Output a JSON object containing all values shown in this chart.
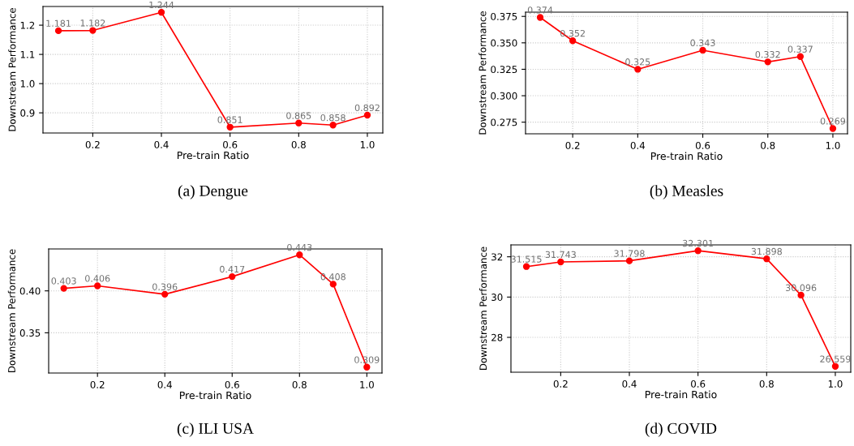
{
  "chart_data": [
    {
      "type": "line",
      "title": "(a) Dengue",
      "xlabel": "Pre-train Ratio",
      "ylabel": "Downstream Performance",
      "x": [
        0.1,
        0.2,
        0.4,
        0.6,
        0.8,
        0.9,
        1.0
      ],
      "series": [
        {
          "color": "#ff0000",
          "values": [
            1.181,
            1.182,
            1.244,
            0.851,
            0.865,
            0.858,
            0.892
          ]
        }
      ],
      "xlim": [
        0.055,
        1.045
      ],
      "xticks": [
        {
          "value": 0.2,
          "label": "0.2"
        },
        {
          "value": 0.4,
          "label": "0.4"
        },
        {
          "value": 0.6,
          "label": "0.6"
        },
        {
          "value": 0.8,
          "label": "0.8"
        },
        {
          "value": 1.0,
          "label": "1.0"
        }
      ],
      "ylim": [
        0.831,
        1.264
      ],
      "yticks": [
        {
          "value": 0.9,
          "label": "0.9"
        },
        {
          "value": 1.0,
          "label": "1.0"
        },
        {
          "value": 1.1,
          "label": "1.1"
        },
        {
          "value": 1.2,
          "label": "1.2"
        }
      ],
      "grid": true,
      "marker": "circle",
      "line_style": "solid",
      "data_labels": true
    },
    {
      "type": "line",
      "title": "(b) Measles",
      "xlabel": "Pre-train Ratio",
      "ylabel": "Downstream Performance",
      "x": [
        0.1,
        0.2,
        0.4,
        0.6,
        0.8,
        0.9,
        1.0
      ],
      "series": [
        {
          "color": "#ff0000",
          "values": [
            0.374,
            0.352,
            0.325,
            0.343,
            0.332,
            0.337,
            0.269
          ]
        }
      ],
      "xlim": [
        0.055,
        1.045
      ],
      "xticks": [
        {
          "value": 0.2,
          "label": "0.2"
        },
        {
          "value": 0.4,
          "label": "0.4"
        },
        {
          "value": 0.6,
          "label": "0.6"
        },
        {
          "value": 0.8,
          "label": "0.8"
        },
        {
          "value": 1.0,
          "label": "1.0"
        }
      ],
      "ylim": [
        0.264,
        0.379
      ],
      "yticks": [
        {
          "value": 0.275,
          "label": "0.275"
        },
        {
          "value": 0.3,
          "label": "0.300"
        },
        {
          "value": 0.325,
          "label": "0.325"
        },
        {
          "value": 0.35,
          "label": "0.350"
        },
        {
          "value": 0.375,
          "label": "0.375"
        }
      ],
      "grid": true,
      "marker": "circle",
      "line_style": "solid",
      "data_labels": true
    },
    {
      "type": "line",
      "title": "(c) ILI USA",
      "xlabel": "Pre-train Ratio",
      "ylabel": "Downstream Performance",
      "x": [
        0.1,
        0.2,
        0.4,
        0.6,
        0.8,
        0.9,
        1.0
      ],
      "series": [
        {
          "color": "#ff0000",
          "values": [
            0.403,
            0.406,
            0.396,
            0.417,
            0.443,
            0.408,
            0.309
          ]
        }
      ],
      "xlim": [
        0.055,
        1.045
      ],
      "xticks": [
        {
          "value": 0.2,
          "label": "0.2"
        },
        {
          "value": 0.4,
          "label": "0.4"
        },
        {
          "value": 0.6,
          "label": "0.6"
        },
        {
          "value": 0.8,
          "label": "0.8"
        },
        {
          "value": 1.0,
          "label": "1.0"
        }
      ],
      "ylim": [
        0.302,
        0.45
      ],
      "yticks": [
        {
          "value": 0.35,
          "label": "0.35"
        },
        {
          "value": 0.4,
          "label": "0.40"
        }
      ],
      "grid": true,
      "marker": "circle",
      "line_style": "solid",
      "data_labels": true
    },
    {
      "type": "line",
      "title": "(d) COVID",
      "xlabel": "Pre-train Ratio",
      "ylabel": "Downstream Performance",
      "x": [
        0.1,
        0.2,
        0.4,
        0.6,
        0.8,
        0.9,
        1.0
      ],
      "series": [
        {
          "color": "#ff0000",
          "values": [
            31.515,
            31.743,
            31.798,
            32.301,
            31.898,
            30.096,
            26.559
          ]
        }
      ],
      "xlim": [
        0.055,
        1.045
      ],
      "xticks": [
        {
          "value": 0.2,
          "label": "0.2"
        },
        {
          "value": 0.4,
          "label": "0.4"
        },
        {
          "value": 0.6,
          "label": "0.6"
        },
        {
          "value": 0.8,
          "label": "0.8"
        },
        {
          "value": 1.0,
          "label": "1.0"
        }
      ],
      "ylim": [
        26.27,
        32.59
      ],
      "yticks": [
        28,
        30,
        32
      ],
      "grid": true,
      "marker": "circle",
      "line_style": "solid",
      "data_labels": true
    }
  ]
}
